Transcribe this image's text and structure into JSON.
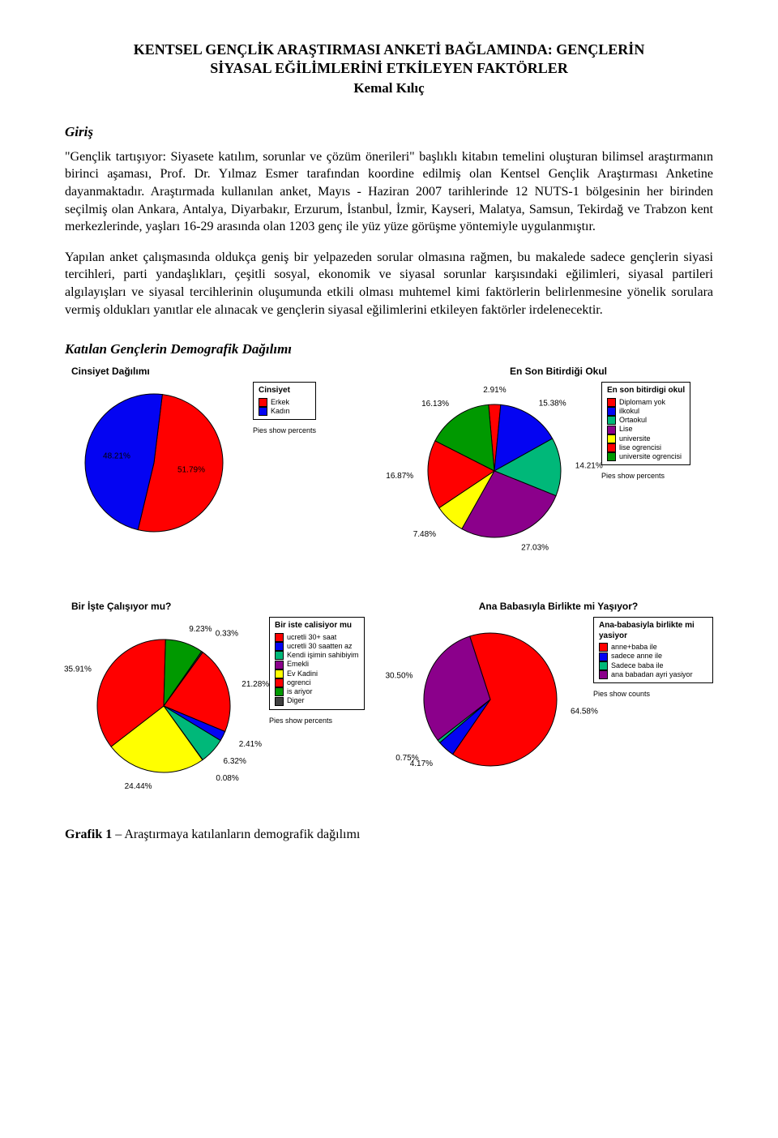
{
  "title_line1": "KENTSEL GENÇLİK ARAŞTIRMASI ANKETİ BAĞLAMINDA: GENÇLERİN",
  "title_line2": "SİYASAL EĞİLİMLERİNİ ETKİLEYEN FAKTÖRLER",
  "author": "Kemal Kılıç",
  "section1_heading": "Giriş",
  "paragraph1": "\"Gençlik tartışıyor: Siyasete katılım, sorunlar ve çözüm önerileri\" başlıklı kitabın temelini oluşturan bilimsel araştırmanın birinci aşaması, Prof. Dr. Yılmaz Esmer tarafından koordine edilmiş olan Kentsel Gençlik Araştırması Anketine dayanmaktadır. Araştırmada kullanılan anket, Mayıs - Haziran 2007 tarihlerinde 12 NUTS-1 bölgesinin her birinden seçilmiş olan Ankara, Antalya, Diyarbakır, Erzurum, İstanbul, İzmir, Kayseri, Malatya, Samsun, Tekirdağ ve Trabzon kent merkezlerinde, yaşları 16-29 arasında olan 1203 genç ile yüz yüze görüşme yöntemiyle uygulanmıştır.",
  "paragraph2": "Yapılan anket çalışmasında oldukça geniş bir yelpazeden sorular olmasına rağmen, bu makalede sadece gençlerin siyasi tercihleri, parti yandaşlıkları, çeşitli sosyal, ekonomik ve siyasal sorunlar karşısındaki eğilimleri, siyasal partileri algılayışları ve siyasal tercihlerinin oluşumunda etkili olması muhtemel kimi faktörlerin belirlenmesine yönelik sorulara vermiş oldukları yanıtlar ele alınacak ve gençlerin siyasal eğilimlerini etkileyen faktörler irdelenecektir.",
  "section2_heading": "Katılan Gençlerin Demografik Dağılımı",
  "figure_caption_bold": "Grafik 1",
  "figure_caption_rest": " – Araştırmaya katılanların demografik dağılımı",
  "chart1": {
    "title": "Cinsiyet Dağılımı",
    "type": "pie",
    "legend_title": "Cinsiyet",
    "legend_sub": "Pies show percents",
    "radius": 85,
    "show_inner_labels": true,
    "label_fontsize": 10,
    "stroke": "#000000",
    "background": "#ffffff",
    "slices": [
      {
        "label": "Erkek",
        "value": 51.79,
        "color": "#ff0000",
        "pct_text": "51.79%"
      },
      {
        "label": "Kadın",
        "value": 48.21,
        "color": "#0404f2",
        "pct_text": "48.21%"
      }
    ]
  },
  "chart2": {
    "title": "En Son  Bitirdiği Okul",
    "type": "pie",
    "legend_title": "En son bitirdigi okul",
    "legend_sub": "Pies show percents",
    "radius": 82,
    "show_inner_labels": false,
    "label_fontsize": 10,
    "stroke": "#000000",
    "background": "#ffffff",
    "slices": [
      {
        "label": "Diplomam yok",
        "value": 2.91,
        "color": "#ff0000",
        "pct_text": "2.91%"
      },
      {
        "label": "ilkokul",
        "value": 15.38,
        "color": "#0404f2",
        "pct_text": "15.38%"
      },
      {
        "label": "Ortaokul",
        "value": 14.21,
        "color": "#00b879",
        "pct_text": "14.21%"
      },
      {
        "label": "Lise",
        "value": 27.03,
        "color": "#8b008b",
        "pct_text": "27.03%"
      },
      {
        "label": "universite",
        "value": 7.48,
        "color": "#ffff00",
        "pct_text": "7.48%"
      },
      {
        "label": "lise ogrencisi",
        "value": 16.87,
        "color": "#ff0000",
        "pct_text": "16.87%"
      },
      {
        "label": "universite ogrencisi",
        "value": 16.13,
        "color": "#009900",
        "pct_text": "16.13%"
      }
    ]
  },
  "chart3": {
    "title": "Bir İşte Çalışıyor mu?",
    "type": "pie",
    "legend_title": "Bir iste calisiyor mu",
    "legend_sub": "Pies show percents",
    "radius": 82,
    "show_inner_labels": false,
    "label_fontsize": 10,
    "stroke": "#000000",
    "background": "#ffffff",
    "slices": [
      {
        "label": "ucretli 30+ saat",
        "value": 21.28,
        "color": "#ff0000",
        "pct_text": "21.28%"
      },
      {
        "label": "ucretli 30 saatten az",
        "value": 2.41,
        "color": "#0404f2",
        "pct_text": "2.41%"
      },
      {
        "label": "Kendi işimin sahibiyim",
        "value": 6.32,
        "color": "#00b879",
        "pct_text": "6.32%"
      },
      {
        "label": "Emekli",
        "value": 0.08,
        "color": "#8b008b",
        "pct_text": "0.08%"
      },
      {
        "label": "Ev Kadini",
        "value": 24.44,
        "color": "#ffff00",
        "pct_text": "24.44%"
      },
      {
        "label": "ogrenci",
        "value": 35.91,
        "color": "#ff0000",
        "pct_text": "35.91%"
      },
      {
        "label": "is ariyor",
        "value": 9.23,
        "color": "#009900",
        "pct_text": "9.23%"
      },
      {
        "label": "Diger",
        "value": 0.33,
        "color": "#404040",
        "pct_text": "0.33%"
      }
    ]
  },
  "chart4": {
    "title": "Ana Babasıyla Birlikte mi Yaşıyor?",
    "type": "pie",
    "legend_title": "Ana-babasiyla birlikte mi yasiyor",
    "legend_sub": "Pies show counts",
    "radius": 82,
    "show_inner_labels": false,
    "label_fontsize": 10,
    "stroke": "#000000",
    "background": "#ffffff",
    "slices": [
      {
        "label": "anne+baba ile",
        "value": 64.58,
        "color": "#ff0000",
        "pct_text": "64.58%"
      },
      {
        "label": "sadece anne ile",
        "value": 4.17,
        "color": "#0404f2",
        "pct_text": "4.17%"
      },
      {
        "label": "Sadece baba ile",
        "value": 0.75,
        "color": "#00b879",
        "pct_text": "0.75%"
      },
      {
        "label": "ana babadan ayri yasiyor",
        "value": 30.5,
        "color": "#8b008b",
        "pct_text": "30.50%"
      }
    ]
  }
}
